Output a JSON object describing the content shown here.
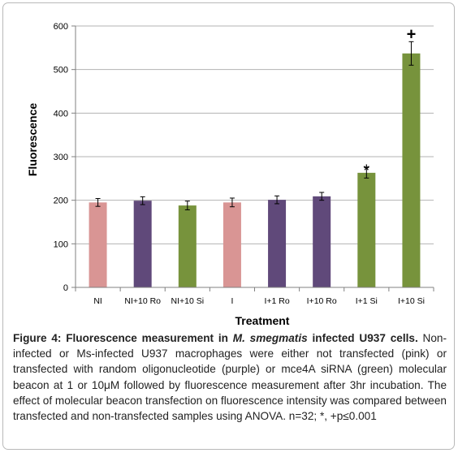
{
  "chart_data": {
    "type": "bar",
    "categories": [
      "NI",
      "NI+10 Ro",
      "NI+10 Si",
      "I",
      "I+1 Ro",
      "I+10 Ro",
      "I+1 Si",
      "I+10 Si"
    ],
    "values": [
      195,
      199,
      188,
      195,
      201,
      209,
      263,
      537
    ],
    "errors": [
      9,
      9,
      10,
      10,
      9,
      9,
      12,
      27
    ],
    "bar_colors": [
      "#d99594",
      "#60497a",
      "#77933c",
      "#d99594",
      "#60497a",
      "#60497a",
      "#77933c",
      "#77933c"
    ],
    "annotations": [
      {
        "category": "I+1 Si",
        "text": "*"
      },
      {
        "category": "I+10 Si",
        "text": "+"
      }
    ],
    "ylabel": "Fluorescence",
    "xlabel": "Treatment",
    "ylim": [
      0,
      600
    ],
    "yticks": [
      0,
      100,
      200,
      300,
      400,
      500,
      600
    ],
    "grid": true
  },
  "caption": {
    "lead": "Figure 4: Fluorescence measurement in ",
    "species": "M. smegmatis",
    "lead_end": " infected U937 cells.",
    "body": " Non-infected or Ms-infected U937 macrophages were either not transfected (pink) or transfected with random oligonucleotide (purple) or mce4A siRNA (green) molecular beacon at 1 or 10μM followed by fluorescence measurement after 3hr incubation. The effect of molecular beacon transfection on fluorescence intensity was compared between transfected and non-transfected samples using ANOVA. n=32; *, +p≤0.001"
  }
}
